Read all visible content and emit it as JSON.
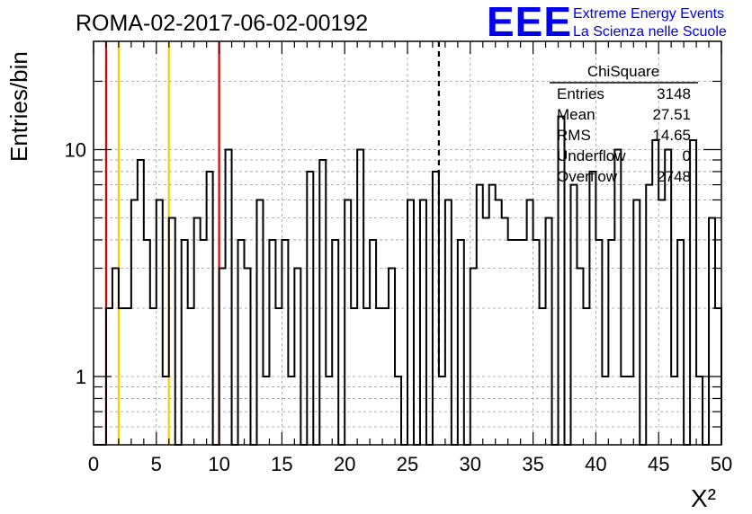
{
  "header": {
    "run_title": "ROMA-02-2017-06-02-00192",
    "logo_letters": "EEE",
    "brand_line1": "Extreme Energy Events",
    "brand_line2": "La Scienza nelle Scuole"
  },
  "stats": {
    "title": "ChiSquare",
    "rows": [
      {
        "label": "Entries",
        "value": "3148"
      },
      {
        "label": "Mean",
        "value": "27.51"
      },
      {
        "label": "RMS",
        "value": "14.65"
      },
      {
        "label": "Underflow",
        "value": "0"
      },
      {
        "label": "Overflow",
        "value": "2748"
      }
    ]
  },
  "colors": {
    "histogram": "#000000",
    "red_line": "#dd0000",
    "yellow_line": "#ffcc00",
    "grid": "#999999",
    "brand": "#0000ee"
  },
  "chart_data": {
    "type": "bar",
    "histogram_style": "step",
    "title": "ROMA-02-2017-06-02-00192",
    "xlabel": "X²",
    "ylabel": "Entries/bin",
    "xlim": [
      0,
      50
    ],
    "ylim": [
      0.5,
      30
    ],
    "yscale": "log",
    "grid": true,
    "bin_width": 0.5,
    "x_ticks": [
      "0",
      "5",
      "10",
      "15",
      "20",
      "25",
      "30",
      "35",
      "40",
      "45",
      "50"
    ],
    "y_ticks": [
      "1",
      "10"
    ],
    "values": [
      0,
      0,
      2,
      3,
      2,
      2,
      6,
      9,
      4,
      2,
      6,
      1,
      5,
      0,
      4,
      2,
      5,
      4,
      8,
      0,
      3,
      10,
      0,
      4,
      3,
      0,
      6,
      1,
      4,
      2,
      4,
      1,
      3,
      0,
      8,
      0,
      9,
      1,
      4,
      0,
      6,
      2,
      10,
      2,
      4,
      2,
      2,
      3,
      1,
      0,
      6,
      0,
      6,
      0,
      8,
      1,
      6,
      0,
      4,
      0,
      3,
      7,
      5,
      7,
      6,
      5,
      4,
      4,
      4,
      6,
      4,
      2,
      5,
      0,
      14,
      0,
      7,
      3,
      2,
      8,
      4,
      1,
      4,
      10,
      1,
      1,
      6,
      0,
      7,
      11,
      6,
      10,
      1,
      4,
      0,
      11,
      1,
      0,
      5,
      2
    ],
    "vertical_markers": [
      {
        "x": 1,
        "color": "red",
        "style": "solid"
      },
      {
        "x": 2,
        "color": "yellow",
        "style": "solid"
      },
      {
        "x": 6,
        "color": "yellow",
        "style": "solid"
      },
      {
        "x": 10,
        "color": "red",
        "style": "solid"
      },
      {
        "x": 27.5,
        "color": "black",
        "style": "dashed"
      }
    ]
  }
}
